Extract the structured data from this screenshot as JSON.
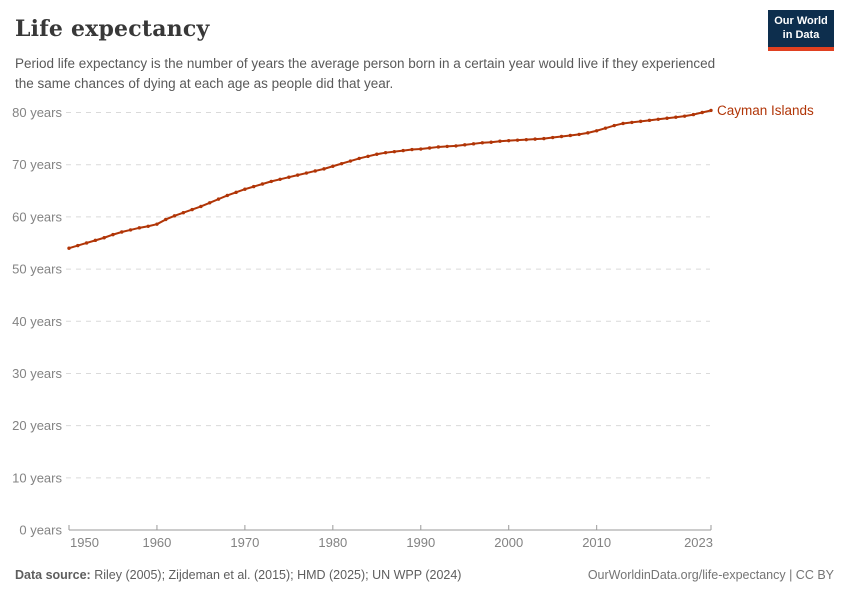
{
  "header": {
    "title": "Life expectancy",
    "subtitle": "Period life expectancy is the number of years the average person born in a certain year would live if they experienced the same chances of dying at each age as people did that year.",
    "logo": {
      "line1": "Our World",
      "line2": "in Data"
    }
  },
  "chart_data": {
    "type": "line",
    "title": "Life expectancy",
    "entity_label": "Cayman Islands",
    "xlabel": "",
    "ylabel": "years",
    "xlim": [
      1950,
      2023
    ],
    "ylim": [
      0,
      80
    ],
    "grid": "horizontal-dashed",
    "legend_position": "end-of-line-label",
    "x_ticks": [
      1950,
      1960,
      1970,
      1980,
      1990,
      2000,
      2010,
      2023
    ],
    "x_tick_labels": [
      "1950",
      "1960",
      "1970",
      "1980",
      "1990",
      "2000",
      "2010",
      "2023"
    ],
    "y_ticks": [
      0,
      10,
      20,
      30,
      40,
      50,
      60,
      70,
      80
    ],
    "y_tick_labels": [
      "0 years",
      "10 years",
      "20 years",
      "30 years",
      "40 years",
      "50 years",
      "60 years",
      "70 years",
      "80 years"
    ],
    "x": [
      1950,
      1951,
      1952,
      1953,
      1954,
      1955,
      1956,
      1957,
      1958,
      1959,
      1960,
      1961,
      1962,
      1963,
      1964,
      1965,
      1966,
      1967,
      1968,
      1969,
      1970,
      1971,
      1972,
      1973,
      1974,
      1975,
      1976,
      1977,
      1978,
      1979,
      1980,
      1981,
      1982,
      1983,
      1984,
      1985,
      1986,
      1987,
      1988,
      1989,
      1990,
      1991,
      1992,
      1993,
      1994,
      1995,
      1996,
      1997,
      1998,
      1999,
      2000,
      2001,
      2002,
      2003,
      2004,
      2005,
      2006,
      2007,
      2008,
      2009,
      2010,
      2011,
      2012,
      2013,
      2014,
      2015,
      2016,
      2017,
      2018,
      2019,
      2020,
      2021,
      2022,
      2023
    ],
    "series": [
      {
        "name": "Cayman Islands",
        "values": [
          54.0,
          54.5,
          55.0,
          55.5,
          56.0,
          56.6,
          57.1,
          57.5,
          57.9,
          58.2,
          58.6,
          59.5,
          60.2,
          60.8,
          61.4,
          62.0,
          62.7,
          63.4,
          64.1,
          64.7,
          65.3,
          65.8,
          66.3,
          66.8,
          67.2,
          67.6,
          68.0,
          68.4,
          68.8,
          69.2,
          69.7,
          70.2,
          70.7,
          71.2,
          71.6,
          72.0,
          72.3,
          72.5,
          72.7,
          72.9,
          73.0,
          73.2,
          73.4,
          73.5,
          73.6,
          73.8,
          74.0,
          74.2,
          74.3,
          74.5,
          74.6,
          74.7,
          74.8,
          74.9,
          75.0,
          75.2,
          75.4,
          75.6,
          75.8,
          76.1,
          76.5,
          77.0,
          77.5,
          77.9,
          78.1,
          78.3,
          78.5,
          78.7,
          78.9,
          79.1,
          79.3,
          79.6,
          80.0,
          80.4
        ]
      }
    ],
    "colors": {
      "line": "#b13507",
      "grid": "#dadada",
      "axis": "#9a9a9a",
      "tick_text": "#838383"
    }
  },
  "footer": {
    "datasource_label": "Data source:",
    "datasource_text": " Riley (2005); Zijdeman et al. (2015); HMD (2025); UN WPP (2024)",
    "link": "OurWorldinData.org/life-expectancy | CC BY"
  }
}
